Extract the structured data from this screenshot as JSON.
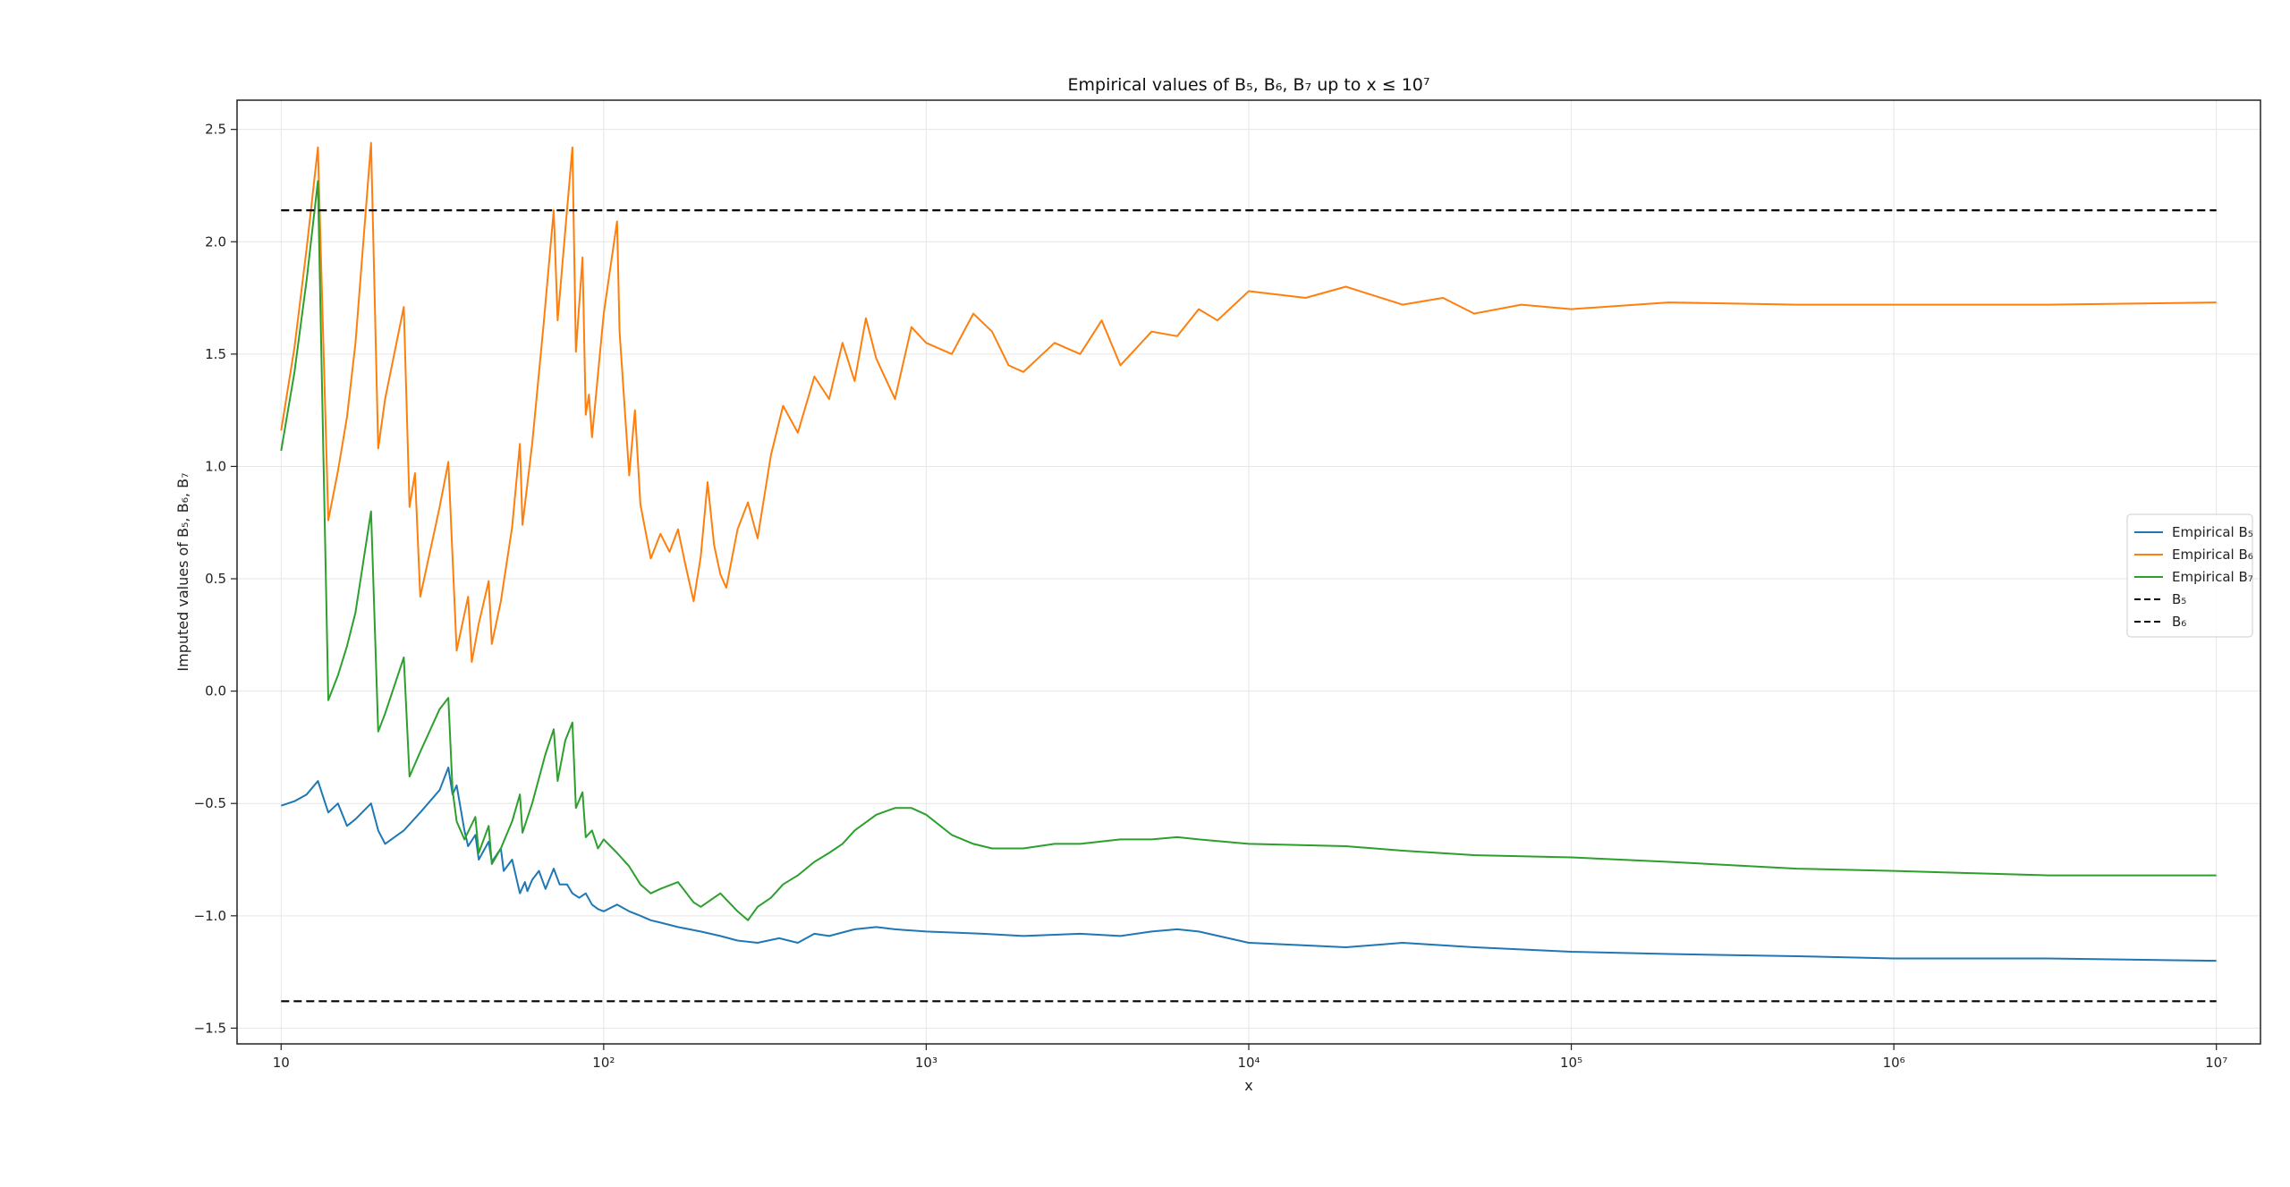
{
  "chart_data": {
    "type": "line",
    "title": "Empirical values of B₅, B₆, B₇ up to x ≤ 10⁷",
    "xlabel": "x",
    "ylabel": "Imputed values of B₅, B₆, B₇",
    "x_scale": "log",
    "xlim": [
      7.3,
      13700000
    ],
    "ylim": [
      -1.57,
      2.63
    ],
    "grid": true,
    "legend_position": "right",
    "x_ticks": [
      {
        "value": 10,
        "label": "10"
      },
      {
        "value": 100,
        "label": "10²"
      },
      {
        "value": 1000,
        "label": "10³"
      },
      {
        "value": 10000,
        "label": "10⁴"
      },
      {
        "value": 100000,
        "label": "10⁵"
      },
      {
        "value": 1000000,
        "label": "10⁶"
      },
      {
        "value": 10000000,
        "label": "10⁷"
      }
    ],
    "y_ticks": [
      {
        "value": -1.5,
        "label": "−1.5"
      },
      {
        "value": -1.0,
        "label": "−1.0"
      },
      {
        "value": -0.5,
        "label": "−0.5"
      },
      {
        "value": 0.0,
        "label": "0.0"
      },
      {
        "value": 0.5,
        "label": "0.5"
      },
      {
        "value": 1.0,
        "label": "1.0"
      },
      {
        "value": 1.5,
        "label": "1.5"
      },
      {
        "value": 2.0,
        "label": "2.0"
      },
      {
        "value": 2.5,
        "label": "2.5"
      }
    ],
    "series": [
      {
        "name": "Empirical B₅",
        "color": "#1f77b4",
        "style": "solid",
        "points": [
          [
            10,
            -0.51
          ],
          [
            11,
            -0.49
          ],
          [
            12,
            -0.46
          ],
          [
            13,
            -0.4
          ],
          [
            14,
            -0.54
          ],
          [
            15,
            -0.5
          ],
          [
            16,
            -0.6
          ],
          [
            17,
            -0.57
          ],
          [
            19,
            -0.5
          ],
          [
            20,
            -0.62
          ],
          [
            21,
            -0.68
          ],
          [
            24,
            -0.62
          ],
          [
            27,
            -0.54
          ],
          [
            31,
            -0.44
          ],
          [
            33,
            -0.34
          ],
          [
            34,
            -0.46
          ],
          [
            35,
            -0.42
          ],
          [
            37,
            -0.62
          ],
          [
            38,
            -0.69
          ],
          [
            40,
            -0.64
          ],
          [
            41,
            -0.75
          ],
          [
            44,
            -0.67
          ],
          [
            45,
            -0.76
          ],
          [
            48,
            -0.7
          ],
          [
            49,
            -0.8
          ],
          [
            52,
            -0.75
          ],
          [
            55,
            -0.9
          ],
          [
            57,
            -0.85
          ],
          [
            58,
            -0.89
          ],
          [
            60,
            -0.84
          ],
          [
            63,
            -0.8
          ],
          [
            66,
            -0.88
          ],
          [
            70,
            -0.79
          ],
          [
            73,
            -0.86
          ],
          [
            77,
            -0.86
          ],
          [
            80,
            -0.9
          ],
          [
            84,
            -0.92
          ],
          [
            88,
            -0.9
          ],
          [
            92,
            -0.95
          ],
          [
            96,
            -0.97
          ],
          [
            100,
            -0.98
          ],
          [
            110,
            -0.95
          ],
          [
            120,
            -0.98
          ],
          [
            130,
            -1.0
          ],
          [
            140,
            -1.02
          ],
          [
            150,
            -1.03
          ],
          [
            170,
            -1.05
          ],
          [
            200,
            -1.07
          ],
          [
            230,
            -1.09
          ],
          [
            260,
            -1.11
          ],
          [
            300,
            -1.12
          ],
          [
            350,
            -1.1
          ],
          [
            400,
            -1.12
          ],
          [
            450,
            -1.08
          ],
          [
            500,
            -1.09
          ],
          [
            600,
            -1.06
          ],
          [
            700,
            -1.05
          ],
          [
            800,
            -1.06
          ],
          [
            1000,
            -1.07
          ],
          [
            1500,
            -1.08
          ],
          [
            2000,
            -1.09
          ],
          [
            3000,
            -1.08
          ],
          [
            4000,
            -1.09
          ],
          [
            5000,
            -1.07
          ],
          [
            6000,
            -1.06
          ],
          [
            7000,
            -1.07
          ],
          [
            10000,
            -1.12
          ],
          [
            20000,
            -1.14
          ],
          [
            30000,
            -1.12
          ],
          [
            50000,
            -1.14
          ],
          [
            100000,
            -1.16
          ],
          [
            200000,
            -1.17
          ],
          [
            500000,
            -1.18
          ],
          [
            1000000,
            -1.19
          ],
          [
            3000000,
            -1.19
          ],
          [
            10000000,
            -1.2
          ]
        ]
      },
      {
        "name": "Empirical B₆",
        "color": "#ff7f0e",
        "style": "solid",
        "points": [
          [
            10,
            1.16
          ],
          [
            11,
            1.53
          ],
          [
            12,
            1.97
          ],
          [
            13,
            2.42
          ],
          [
            14,
            0.76
          ],
          [
            15,
            0.98
          ],
          [
            16,
            1.22
          ],
          [
            17,
            1.55
          ],
          [
            19,
            2.44
          ],
          [
            20,
            1.08
          ],
          [
            21,
            1.3
          ],
          [
            24,
            1.71
          ],
          [
            25,
            0.82
          ],
          [
            26,
            0.97
          ],
          [
            27,
            0.42
          ],
          [
            31,
            0.82
          ],
          [
            33,
            1.02
          ],
          [
            35,
            0.18
          ],
          [
            38,
            0.42
          ],
          [
            39,
            0.13
          ],
          [
            41,
            0.3
          ],
          [
            44,
            0.49
          ],
          [
            45,
            0.21
          ],
          [
            48,
            0.4
          ],
          [
            52,
            0.73
          ],
          [
            55,
            1.1
          ],
          [
            56,
            0.74
          ],
          [
            60,
            1.1
          ],
          [
            65,
            1.62
          ],
          [
            70,
            2.14
          ],
          [
            72,
            1.65
          ],
          [
            76,
            2.05
          ],
          [
            80,
            2.42
          ],
          [
            82,
            1.51
          ],
          [
            86,
            1.93
          ],
          [
            88,
            1.23
          ],
          [
            90,
            1.32
          ],
          [
            92,
            1.13
          ],
          [
            100,
            1.68
          ],
          [
            110,
            2.09
          ],
          [
            112,
            1.6
          ],
          [
            120,
            0.96
          ],
          [
            125,
            1.25
          ],
          [
            130,
            0.83
          ],
          [
            140,
            0.59
          ],
          [
            150,
            0.7
          ],
          [
            160,
            0.62
          ],
          [
            170,
            0.72
          ],
          [
            180,
            0.55
          ],
          [
            190,
            0.4
          ],
          [
            200,
            0.6
          ],
          [
            210,
            0.93
          ],
          [
            220,
            0.65
          ],
          [
            230,
            0.52
          ],
          [
            240,
            0.46
          ],
          [
            260,
            0.72
          ],
          [
            280,
            0.84
          ],
          [
            300,
            0.68
          ],
          [
            330,
            1.05
          ],
          [
            360,
            1.27
          ],
          [
            400,
            1.15
          ],
          [
            450,
            1.4
          ],
          [
            500,
            1.3
          ],
          [
            550,
            1.55
          ],
          [
            600,
            1.38
          ],
          [
            650,
            1.66
          ],
          [
            700,
            1.48
          ],
          [
            800,
            1.3
          ],
          [
            900,
            1.62
          ],
          [
            1000,
            1.55
          ],
          [
            1200,
            1.5
          ],
          [
            1400,
            1.68
          ],
          [
            1600,
            1.6
          ],
          [
            1800,
            1.45
          ],
          [
            2000,
            1.42
          ],
          [
            2500,
            1.55
          ],
          [
            3000,
            1.5
          ],
          [
            3500,
            1.65
          ],
          [
            4000,
            1.45
          ],
          [
            5000,
            1.6
          ],
          [
            6000,
            1.58
          ],
          [
            7000,
            1.7
          ],
          [
            8000,
            1.65
          ],
          [
            10000,
            1.78
          ],
          [
            15000,
            1.75
          ],
          [
            20000,
            1.8
          ],
          [
            30000,
            1.72
          ],
          [
            40000,
            1.75
          ],
          [
            50000,
            1.68
          ],
          [
            70000,
            1.72
          ],
          [
            100000,
            1.7
          ],
          [
            200000,
            1.73
          ],
          [
            500000,
            1.72
          ],
          [
            1000000,
            1.72
          ],
          [
            3000000,
            1.72
          ],
          [
            10000000,
            1.73
          ]
        ]
      },
      {
        "name": "Empirical B₇",
        "color": "#2ca02c",
        "style": "solid",
        "points": [
          [
            10,
            1.07
          ],
          [
            11,
            1.42
          ],
          [
            12,
            1.83
          ],
          [
            13,
            2.27
          ],
          [
            14,
            -0.04
          ],
          [
            15,
            0.07
          ],
          [
            16,
            0.2
          ],
          [
            17,
            0.35
          ],
          [
            19,
            0.8
          ],
          [
            20,
            -0.18
          ],
          [
            21,
            -0.1
          ],
          [
            24,
            0.15
          ],
          [
            25,
            -0.38
          ],
          [
            27,
            -0.27
          ],
          [
            31,
            -0.08
          ],
          [
            33,
            -0.03
          ],
          [
            34,
            -0.44
          ],
          [
            35,
            -0.58
          ],
          [
            37,
            -0.66
          ],
          [
            40,
            -0.56
          ],
          [
            41,
            -0.72
          ],
          [
            44,
            -0.6
          ],
          [
            45,
            -0.77
          ],
          [
            48,
            -0.7
          ],
          [
            52,
            -0.58
          ],
          [
            55,
            -0.46
          ],
          [
            56,
            -0.63
          ],
          [
            60,
            -0.5
          ],
          [
            66,
            -0.28
          ],
          [
            70,
            -0.17
          ],
          [
            72,
            -0.4
          ],
          [
            76,
            -0.22
          ],
          [
            80,
            -0.14
          ],
          [
            82,
            -0.52
          ],
          [
            86,
            -0.45
          ],
          [
            88,
            -0.65
          ],
          [
            92,
            -0.62
          ],
          [
            96,
            -0.7
          ],
          [
            100,
            -0.66
          ],
          [
            110,
            -0.72
          ],
          [
            120,
            -0.78
          ],
          [
            130,
            -0.86
          ],
          [
            140,
            -0.9
          ],
          [
            150,
            -0.88
          ],
          [
            170,
            -0.85
          ],
          [
            190,
            -0.94
          ],
          [
            200,
            -0.96
          ],
          [
            230,
            -0.9
          ],
          [
            260,
            -0.98
          ],
          [
            280,
            -1.02
          ],
          [
            300,
            -0.96
          ],
          [
            330,
            -0.92
          ],
          [
            360,
            -0.86
          ],
          [
            400,
            -0.82
          ],
          [
            450,
            -0.76
          ],
          [
            500,
            -0.72
          ],
          [
            550,
            -0.68
          ],
          [
            600,
            -0.62
          ],
          [
            700,
            -0.55
          ],
          [
            800,
            -0.52
          ],
          [
            900,
            -0.52
          ],
          [
            1000,
            -0.55
          ],
          [
            1200,
            -0.64
          ],
          [
            1400,
            -0.68
          ],
          [
            1600,
            -0.7
          ],
          [
            2000,
            -0.7
          ],
          [
            2500,
            -0.68
          ],
          [
            3000,
            -0.68
          ],
          [
            4000,
            -0.66
          ],
          [
            5000,
            -0.66
          ],
          [
            6000,
            -0.65
          ],
          [
            7000,
            -0.66
          ],
          [
            10000,
            -0.68
          ],
          [
            20000,
            -0.69
          ],
          [
            30000,
            -0.71
          ],
          [
            50000,
            -0.73
          ],
          [
            100000,
            -0.74
          ],
          [
            200000,
            -0.76
          ],
          [
            500000,
            -0.79
          ],
          [
            1000000,
            -0.8
          ],
          [
            3000000,
            -0.82
          ],
          [
            10000000,
            -0.82
          ]
        ]
      },
      {
        "name": "B₅",
        "color": "#000000",
        "style": "dashed",
        "points": [
          [
            10,
            2.14
          ],
          [
            10000000,
            2.14
          ]
        ]
      },
      {
        "name": "B₆",
        "color": "#000000",
        "style": "dashed",
        "points": [
          [
            10,
            -1.38
          ],
          [
            10000000,
            -1.38
          ]
        ]
      }
    ]
  }
}
